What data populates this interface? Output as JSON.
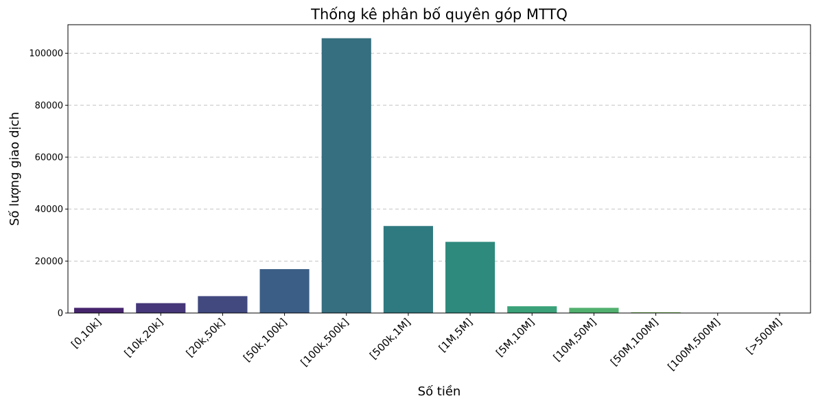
{
  "chart_data": {
    "type": "bar",
    "title": "Thống kê phân bố quyên góp MTTQ",
    "xlabel": "Số tiền",
    "ylabel": "Số lượng giao dịch",
    "categories": [
      "[0,10k]",
      "[10k,20k]",
      "[20k,50k]",
      "[50k,100k]",
      "[100k,500k]",
      "[500k,1M]",
      "[1M,5M]",
      "[5M,10M]",
      "[10M,50M]",
      "[50M,100M]",
      "[100M,500M]",
      "[>500M]"
    ],
    "values": [
      2000,
      3800,
      6500,
      16900,
      105800,
      33500,
      27400,
      2600,
      2000,
      300,
      40,
      20
    ],
    "yticks": [
      0,
      20000,
      40000,
      60000,
      80000,
      100000
    ],
    "ylim": [
      0,
      111000
    ],
    "grid": "y-dashed",
    "colors": [
      "#46256d",
      "#453779",
      "#41497f",
      "#3b5e86",
      "#366f7f",
      "#2f7a80",
      "#2e8a7d",
      "#3aa178",
      "#51b06e",
      "#7bc45e",
      "#a6d04c",
      "#d3da3f"
    ]
  }
}
